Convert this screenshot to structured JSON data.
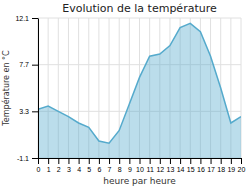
{
  "chart_data": {
    "type": "area",
    "title": "Evolution de la température",
    "x_label": "heure par heure",
    "y_label": "Température en °C",
    "x": [
      0,
      1,
      2,
      3,
      4,
      5,
      6,
      7,
      8,
      9,
      10,
      11,
      12,
      13,
      14,
      15,
      16,
      17,
      18,
      19,
      20
    ],
    "values": [
      3.5,
      3.8,
      3.3,
      2.8,
      2.2,
      1.8,
      0.5,
      0.3,
      1.5,
      4.0,
      6.5,
      8.5,
      8.7,
      9.5,
      11.2,
      11.6,
      10.8,
      8.5,
      5.5,
      2.2,
      2.8
    ],
    "color": "#55aacc",
    "xlim": [
      0,
      20
    ],
    "xticks": [
      0,
      1,
      2,
      3,
      4,
      5,
      6,
      7,
      8,
      9,
      10,
      11,
      12,
      13,
      14,
      15,
      16,
      17,
      18,
      19,
      20
    ],
    "ylim": [
      -1.1,
      12.1
    ],
    "yticks": [
      -1.1,
      3.3,
      7.7,
      12.1
    ],
    "grid": true
  }
}
